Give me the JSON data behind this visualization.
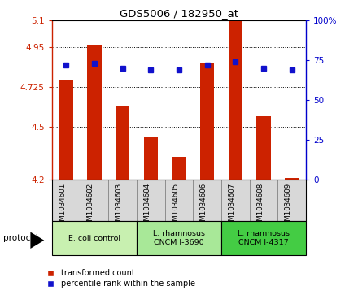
{
  "title": "GDS5006 / 182950_at",
  "samples": [
    "GSM1034601",
    "GSM1034602",
    "GSM1034603",
    "GSM1034604",
    "GSM1034605",
    "GSM1034606",
    "GSM1034607",
    "GSM1034608",
    "GSM1034609"
  ],
  "red_values": [
    4.76,
    4.965,
    4.62,
    4.44,
    4.33,
    4.86,
    5.095,
    4.56,
    4.21
  ],
  "blue_values": [
    72,
    73,
    70,
    69,
    69,
    72,
    74,
    70,
    69
  ],
  "ylim_left": [
    4.2,
    5.1
  ],
  "ylim_right": [
    0,
    100
  ],
  "yticks_left": [
    4.2,
    4.5,
    4.725,
    4.95,
    5.1
  ],
  "ytick_labels_left": [
    "4.2",
    "4.5",
    "4.725",
    "4.95",
    "5.1"
  ],
  "yticks_right": [
    0,
    25,
    50,
    75,
    100
  ],
  "ytick_labels_right": [
    "0",
    "25",
    "50",
    "75",
    "100%"
  ],
  "hlines": [
    4.5,
    4.725,
    4.95
  ],
  "groups": [
    {
      "label": "E. coli control",
      "indices": [
        0,
        1,
        2
      ],
      "color": "#c8f0b0"
    },
    {
      "label": "L. rhamnosus\nCNCM I-3690",
      "indices": [
        3,
        4,
        5
      ],
      "color": "#a8e898"
    },
    {
      "label": "L. rhamnosus\nCNCM I-4317",
      "indices": [
        6,
        7,
        8
      ],
      "color": "#44cc44"
    }
  ],
  "protocol_label": "protocol",
  "bar_color": "#cc2200",
  "dot_color": "#1111cc",
  "bar_width": 0.5,
  "background_color": "#ffffff",
  "plot_bg": "#ffffff",
  "label_red": "transformed count",
  "label_blue": "percentile rank within the sample",
  "left_axis_color": "#cc2200",
  "right_axis_color": "#0000cc",
  "sample_box_color": "#d8d8d8"
}
